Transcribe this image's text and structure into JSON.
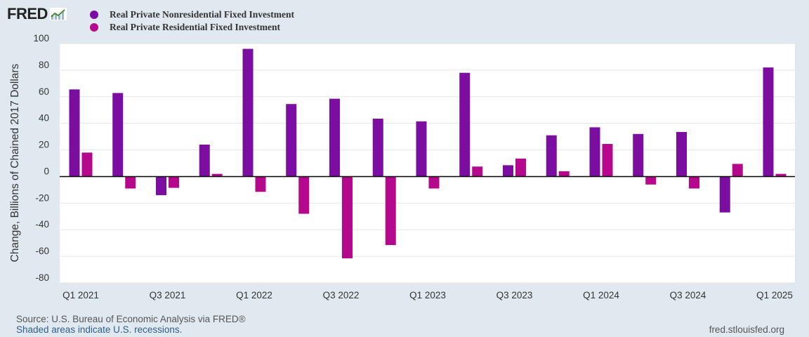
{
  "logo": {
    "text": "FRED"
  },
  "legend": [
    {
      "name": "Real Private Nonresidential Fixed Investment",
      "color": "#7b0da0"
    },
    {
      "name": "Real Private Residential Fixed Investment",
      "color": "#b5088d"
    }
  ],
  "footer": {
    "source": "Source: U.S. Bureau of Economic Analysis via FRED®",
    "recession_note": "Shaded areas indicate U.S. recessions.",
    "url": "fred.stlouisfed.org"
  },
  "chart_data": {
    "type": "bar",
    "ylabel": "Change, Billions of Chained 2017 Dollars",
    "xlabel": "",
    "ylim": [
      -80,
      100
    ],
    "yticks": [
      100,
      80,
      60,
      40,
      20,
      0,
      -20,
      -40,
      -60,
      -80
    ],
    "grid": true,
    "legend_position": "top-left",
    "categories": [
      "Q1 2021",
      "Q2 2021",
      "Q3 2021",
      "Q4 2021",
      "Q1 2022",
      "Q2 2022",
      "Q3 2022",
      "Q4 2022",
      "Q1 2023",
      "Q2 2023",
      "Q3 2023",
      "Q4 2023",
      "Q1 2024",
      "Q2 2024",
      "Q3 2024",
      "Q4 2024",
      "Q1 2025"
    ],
    "xtick_labels": [
      "Q1 2021",
      "Q3 2021",
      "Q1 2022",
      "Q3 2022",
      "Q1 2023",
      "Q3 2023",
      "Q1 2024",
      "Q3 2024",
      "Q1 2025"
    ],
    "series": [
      {
        "name": "Real Private Nonresidential Fixed Investment",
        "color": "#7b0da0",
        "values": [
          65.5,
          62.8,
          -14.0,
          24.0,
          96.0,
          54.5,
          58.5,
          43.5,
          41.5,
          78.0,
          8.5,
          31.0,
          37.0,
          32.0,
          33.5,
          -27.0,
          82.0
        ]
      },
      {
        "name": "Real Private Residential Fixed Investment",
        "color": "#b5088d",
        "values": [
          18.0,
          -9.0,
          -8.5,
          2.0,
          -11.5,
          -28.0,
          -61.5,
          -51.5,
          -9.0,
          7.5,
          13.5,
          4.0,
          24.5,
          -6.0,
          -9.0,
          9.5,
          2.0
        ]
      }
    ]
  }
}
